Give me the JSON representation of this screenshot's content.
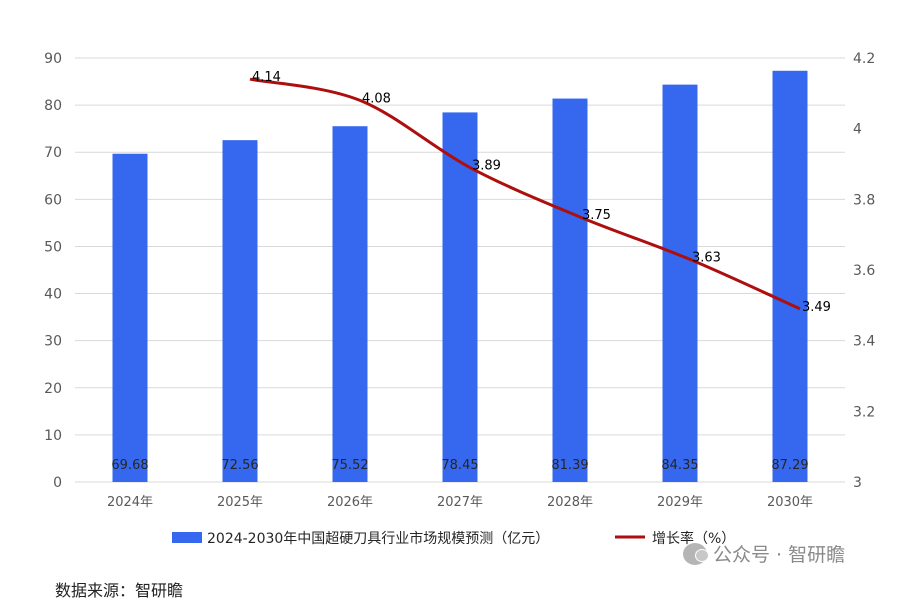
{
  "chart_data": {
    "type": "bar",
    "categories": [
      "2024年",
      "2025年",
      "2026年",
      "2027年",
      "2028年",
      "2029年",
      "2030年"
    ],
    "series": [
      {
        "name": "2024-2030年中国超硬刀具行业市场规模预测（亿元）",
        "type": "bar",
        "axis": "left",
        "values": [
          69.68,
          72.56,
          75.52,
          78.45,
          81.39,
          84.35,
          87.29
        ]
      },
      {
        "name": "增长率（%）",
        "type": "line",
        "axis": "right",
        "values": [
          null,
          4.14,
          4.08,
          3.89,
          3.75,
          3.63,
          3.49
        ]
      }
    ],
    "y_left": {
      "min": 0,
      "max": 90,
      "ticks": [
        0,
        10,
        20,
        30,
        40,
        50,
        60,
        70,
        80,
        90
      ]
    },
    "y_right": {
      "min": 3,
      "max": 4.2,
      "ticks": [
        "3",
        "3.2",
        "3.4",
        "3.6",
        "3.8",
        "4",
        "4.2"
      ]
    },
    "bar_labels": [
      "69.68",
      "72.56",
      "75.52",
      "78.45",
      "81.39",
      "84.35",
      "87.29"
    ],
    "line_labels": [
      "",
      "4.14",
      "4.08",
      "3.89",
      "3.75",
      "3.63",
      "3.49"
    ],
    "grid": true,
    "legend_position": "bottom",
    "colors": {
      "bar": "#3568EE",
      "line": "#AE0E0E",
      "grid": "#D9D9D9"
    }
  },
  "watermark": "公众号 · 智研瞻",
  "source_text": "数据来源：智研瞻"
}
